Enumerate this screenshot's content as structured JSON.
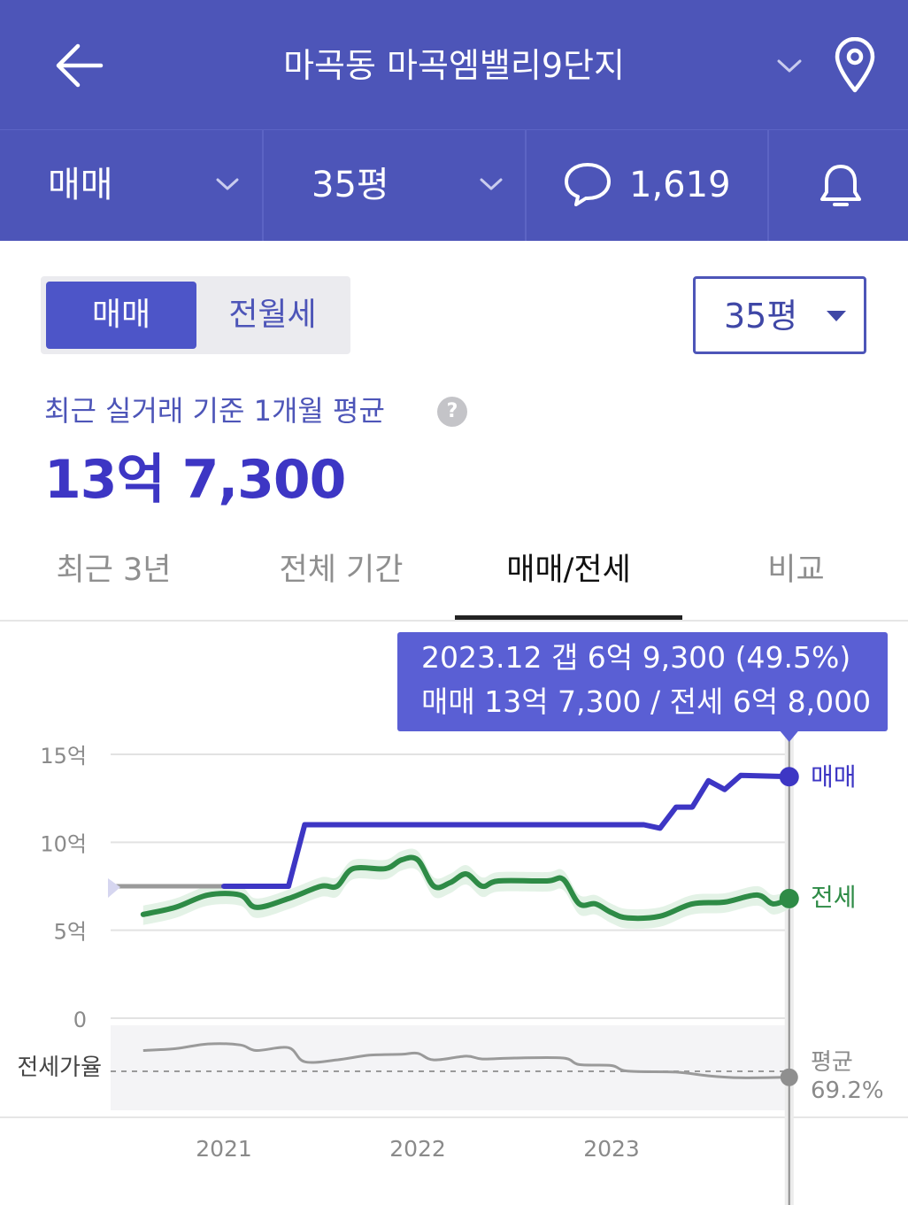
{
  "header": {
    "title": "마곡동 마곡엠밸리9단지",
    "back_icon": "arrow-left-icon",
    "location_icon": "map-pin-icon"
  },
  "filters": {
    "trade_type": "매매",
    "size": "35평",
    "comments": "1,619",
    "notification_icon": "bell-icon"
  },
  "toggle": {
    "sale": "매매",
    "rent": "전월세"
  },
  "size_select": {
    "value": "35평"
  },
  "summary": {
    "label": "최근 실거래 기준 1개월 평균",
    "help": "?",
    "price": "13억 7,300"
  },
  "tabs": [
    "최근 3년",
    "전체 기간",
    "매매/전세",
    "비교"
  ],
  "active_tab": 2,
  "tooltip": {
    "line1": "2023.12  갭 6억 9,300 (49.5%)",
    "line2": "매매 13억 7,300 / 전세 6억 8,000"
  },
  "colors": {
    "header_bg": "#4d55b8",
    "sale": "#3d36c4",
    "jeonse": "#2e8b46",
    "ratio": "#9a9a9a",
    "tooltip_bg": "#5a5fd4"
  },
  "chart_data": {
    "type": "line",
    "ylabel": "",
    "y_ticks": [
      "15억",
      "10억",
      "5억",
      "0"
    ],
    "x_ticks": [
      "2021",
      "2022",
      "2023"
    ],
    "ylim": [
      0,
      15
    ],
    "y_unit": "억",
    "ratio_label": "전세가율",
    "average_label": "평균",
    "average_value": "69.2%",
    "series": [
      {
        "name": "매매",
        "points": [
          [
            "2021.01",
            7.5
          ],
          [
            "2021.04",
            7.5
          ],
          [
            "2021.05",
            7.5
          ],
          [
            "2021.06",
            11.0
          ],
          [
            "2021.09",
            11.0
          ],
          [
            "2022.06",
            11.0
          ],
          [
            "2023.01",
            11.0
          ],
          [
            "2023.03",
            11.0
          ],
          [
            "2023.04",
            10.8
          ],
          [
            "2023.05",
            12.0
          ],
          [
            "2023.06",
            12.0
          ],
          [
            "2023.07",
            13.5
          ],
          [
            "2023.08",
            13.0
          ],
          [
            "2023.09",
            13.8
          ],
          [
            "2023.12",
            13.73
          ]
        ]
      },
      {
        "name": "전세",
        "points": [
          [
            "2020.08",
            5.9
          ],
          [
            "2020.10",
            6.3
          ],
          [
            "2020.12",
            7.0
          ],
          [
            "2021.02",
            7.0
          ],
          [
            "2021.03",
            6.3
          ],
          [
            "2021.05",
            6.8
          ],
          [
            "2021.07",
            7.5
          ],
          [
            "2021.08",
            7.5
          ],
          [
            "2021.09",
            8.5
          ],
          [
            "2021.11",
            8.5
          ],
          [
            "2021.12",
            9.0
          ],
          [
            "2022.01",
            9.0
          ],
          [
            "2022.02",
            7.5
          ],
          [
            "2022.03",
            7.7
          ],
          [
            "2022.04",
            8.2
          ],
          [
            "2022.05",
            7.5
          ],
          [
            "2022.06",
            7.8
          ],
          [
            "2022.09",
            7.8
          ],
          [
            "2022.10",
            7.9
          ],
          [
            "2022.11",
            6.5
          ],
          [
            "2022.12",
            6.5
          ],
          [
            "2023.01",
            6.0
          ],
          [
            "2023.02",
            5.7
          ],
          [
            "2023.04",
            5.8
          ],
          [
            "2023.06",
            6.5
          ],
          [
            "2023.08",
            6.6
          ],
          [
            "2023.10",
            7.0
          ],
          [
            "2023.11",
            6.5
          ],
          [
            "2023.12",
            6.8
          ]
        ]
      }
    ],
    "jeonse_ratio": [
      [
        "2020.08",
        78
      ],
      [
        "2020.10",
        80
      ],
      [
        "2020.12",
        85
      ],
      [
        "2021.02",
        84
      ],
      [
        "2021.03",
        78
      ],
      [
        "2021.05",
        81
      ],
      [
        "2021.06",
        66
      ],
      [
        "2021.08",
        68
      ],
      [
        "2021.10",
        73
      ],
      [
        "2021.12",
        74
      ],
      [
        "2022.01",
        75
      ],
      [
        "2022.02",
        68
      ],
      [
        "2022.04",
        72
      ],
      [
        "2022.05",
        69
      ],
      [
        "2022.07",
        70
      ],
      [
        "2022.10",
        70
      ],
      [
        "2022.11",
        63
      ],
      [
        "2023.01",
        62
      ],
      [
        "2023.02",
        56
      ],
      [
        "2023.05",
        55
      ],
      [
        "2023.07",
        51
      ],
      [
        "2023.09",
        49
      ],
      [
        "2023.12",
        49.5
      ]
    ]
  }
}
